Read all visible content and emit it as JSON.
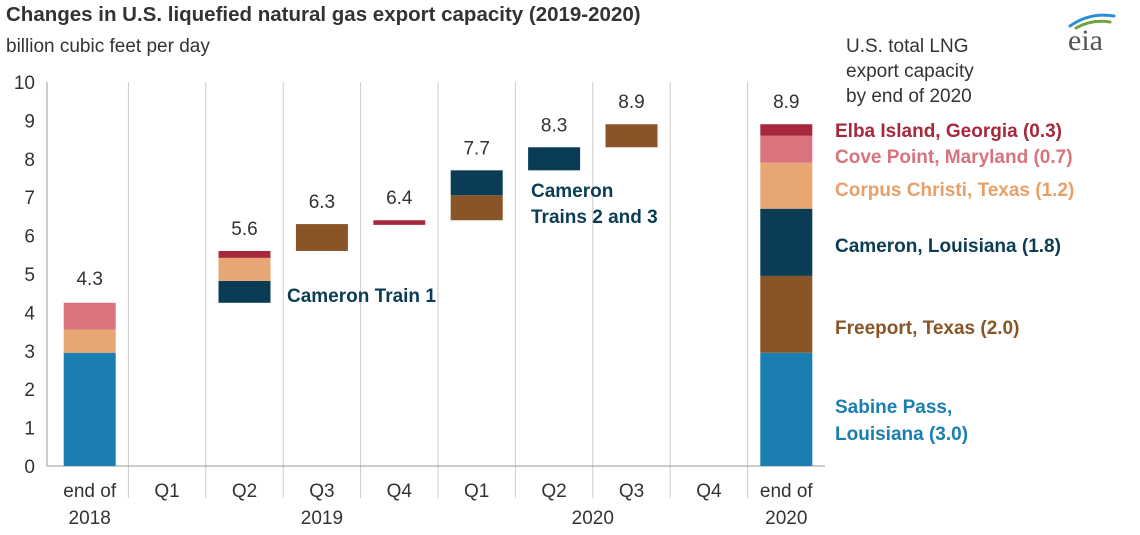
{
  "header": {
    "title": "Changes in U.S. liquefied natural gas export capacity (2019-2020)",
    "subtitle": "billion cubic feet per day",
    "total_label": "U.S. total LNG\nexport capacity\nby end of 2020",
    "logo_text": "eia"
  },
  "colors": {
    "sabine_pass": "#1a7fb0",
    "freeport": "#8a5526",
    "cameron": "#0a3d55",
    "corpus_christi": "#e8a672",
    "cove_point": "#d9737e",
    "elba_island": "#a7283d",
    "gridline": "#cccccc",
    "axis_text": "#333333",
    "logo_blue": "#2e8fd0",
    "logo_green": "#6fa33b"
  },
  "chart_data": {
    "type": "waterfall",
    "ylim": [
      0,
      10
    ],
    "yticks": [
      0,
      1,
      2,
      3,
      4,
      5,
      6,
      7,
      8,
      9,
      10
    ],
    "grid": false,
    "columns": [
      {
        "line1": "end of",
        "line2": "2018"
      },
      {
        "line1": "Q1",
        "line2": ""
      },
      {
        "line1": "Q2",
        "line2": ""
      },
      {
        "line1": "Q3",
        "line2": ""
      },
      {
        "line1": "Q4",
        "line2": ""
      },
      {
        "line1": "Q1",
        "line2": ""
      },
      {
        "line1": "Q2",
        "line2": ""
      },
      {
        "line1": "Q3",
        "line2": ""
      },
      {
        "line1": "Q4",
        "line2": ""
      },
      {
        "line1": "end of",
        "line2": "2020"
      }
    ],
    "year_labels": [
      {
        "label": "2019",
        "under_column": 3
      },
      {
        "label": "2020",
        "under_column": 6.5
      }
    ],
    "totals": [
      {
        "column": 0,
        "label": "4.3",
        "value": 4.3
      },
      {
        "column": 2,
        "label": "5.6",
        "value": 5.6
      },
      {
        "column": 3,
        "label": "6.3",
        "value": 6.3
      },
      {
        "column": 4,
        "label": "6.4",
        "value": 6.4
      },
      {
        "column": 5,
        "label": "7.7",
        "value": 7.7
      },
      {
        "column": 6,
        "label": "8.3",
        "value": 8.3
      },
      {
        "column": 7,
        "label": "8.9",
        "value": 8.9
      },
      {
        "column": 9,
        "label": "8.9",
        "value": 8.9
      }
    ],
    "segments": [
      {
        "column": 0,
        "facility": "sabine_pass",
        "start": 0,
        "end": 2.95
      },
      {
        "column": 0,
        "facility": "corpus_christi",
        "start": 2.95,
        "end": 3.55
      },
      {
        "column": 0,
        "facility": "cove_point",
        "start": 3.55,
        "end": 4.25
      },
      {
        "column": 2,
        "facility": "cameron",
        "start": 4.25,
        "end": 4.82
      },
      {
        "column": 2,
        "facility": "corpus_christi",
        "start": 4.82,
        "end": 5.42
      },
      {
        "column": 2,
        "facility": "elba_island",
        "start": 5.42,
        "end": 5.6
      },
      {
        "column": 3,
        "facility": "freeport",
        "start": 5.6,
        "end": 6.3
      },
      {
        "column": 4,
        "facility": "elba_island",
        "start": 6.28,
        "end": 6.4
      },
      {
        "column": 5,
        "facility": "freeport",
        "start": 6.4,
        "end": 7.05
      },
      {
        "column": 5,
        "facility": "cameron",
        "start": 7.05,
        "end": 7.7
      },
      {
        "column": 6,
        "facility": "cameron",
        "start": 7.7,
        "end": 8.3
      },
      {
        "column": 7,
        "facility": "freeport",
        "start": 8.3,
        "end": 8.9
      },
      {
        "column": 9,
        "facility": "sabine_pass",
        "start": 0,
        "end": 2.95
      },
      {
        "column": 9,
        "facility": "freeport",
        "start": 2.95,
        "end": 4.95
      },
      {
        "column": 9,
        "facility": "cameron",
        "start": 4.95,
        "end": 6.7
      },
      {
        "column": 9,
        "facility": "corpus_christi",
        "start": 6.7,
        "end": 7.9
      },
      {
        "column": 9,
        "facility": "cove_point",
        "start": 7.9,
        "end": 8.6
      },
      {
        "column": 9,
        "facility": "elba_island",
        "start": 8.6,
        "end": 8.9
      }
    ],
    "annotations": [
      {
        "text": "Cameron Train 1",
        "facility": "cameron",
        "anchor_column": 2
      },
      {
        "text": "Cameron\nTrains 2 and 3",
        "facility": "cameron",
        "anchor_column": 5
      }
    ],
    "legend": [
      {
        "facility": "elba_island",
        "label": "Elba Island, Georgia (0.3)"
      },
      {
        "facility": "cove_point",
        "label": "Cove Point, Maryland (0.7)"
      },
      {
        "facility": "corpus_christi",
        "label": "Corpus Christi, Texas (1.2)"
      },
      {
        "facility": "cameron",
        "label": "Cameron, Louisiana (1.8)"
      },
      {
        "facility": "freeport",
        "label": "Freeport, Texas (2.0)"
      },
      {
        "facility": "sabine_pass",
        "label": "Sabine Pass,\nLouisiana (3.0)"
      }
    ]
  }
}
